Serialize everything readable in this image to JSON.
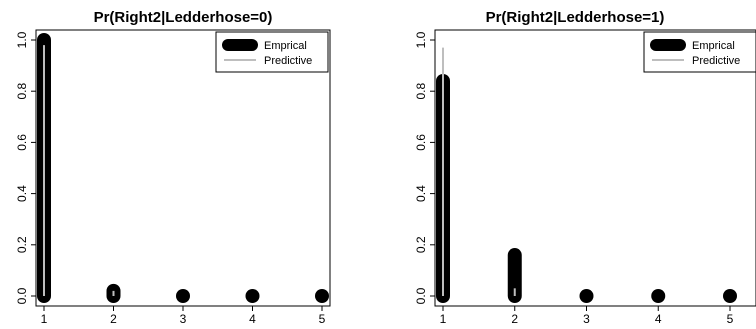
{
  "chart_data": [
    {
      "type": "bar",
      "title": "Pr(Right2|Ledderhose=0)",
      "x": [
        1,
        2,
        3,
        4,
        5
      ],
      "series": [
        {
          "name": "Emprical",
          "values": [
            1.0,
            0.02,
            0.0,
            0.0,
            0.0
          ],
          "color": "#000000"
        },
        {
          "name": "Predictive",
          "values": [
            0.98,
            0.02,
            0.0,
            0.0,
            0.0
          ],
          "color": "#bebebe"
        }
      ],
      "xlim": [
        1,
        5
      ],
      "ylim": [
        0,
        1
      ],
      "xticks": [
        "1",
        "2",
        "3",
        "4",
        "5"
      ],
      "yticks": [
        "0.0",
        "0.2",
        "0.4",
        "0.6",
        "0.8",
        "1.0"
      ],
      "legend_position": "top-right",
      "grid": false
    },
    {
      "type": "bar",
      "title": "Pr(Right2|Ledderhose=1)",
      "x": [
        1,
        2,
        3,
        4,
        5
      ],
      "series": [
        {
          "name": "Emprical",
          "values": [
            0.84,
            0.16,
            0.0,
            0.0,
            0.0
          ],
          "color": "#000000"
        },
        {
          "name": "Predictive",
          "values": [
            0.97,
            0.03,
            0.0,
            0.0,
            0.0
          ],
          "color": "#bebebe"
        }
      ],
      "xlim": [
        1,
        5
      ],
      "ylim": [
        0,
        1
      ],
      "xticks": [
        "1",
        "2",
        "3",
        "4",
        "5"
      ],
      "yticks": [
        "0.0",
        "0.2",
        "0.4",
        "0.6",
        "0.8",
        "1.0"
      ],
      "legend_position": "top-right",
      "grid": false
    }
  ]
}
